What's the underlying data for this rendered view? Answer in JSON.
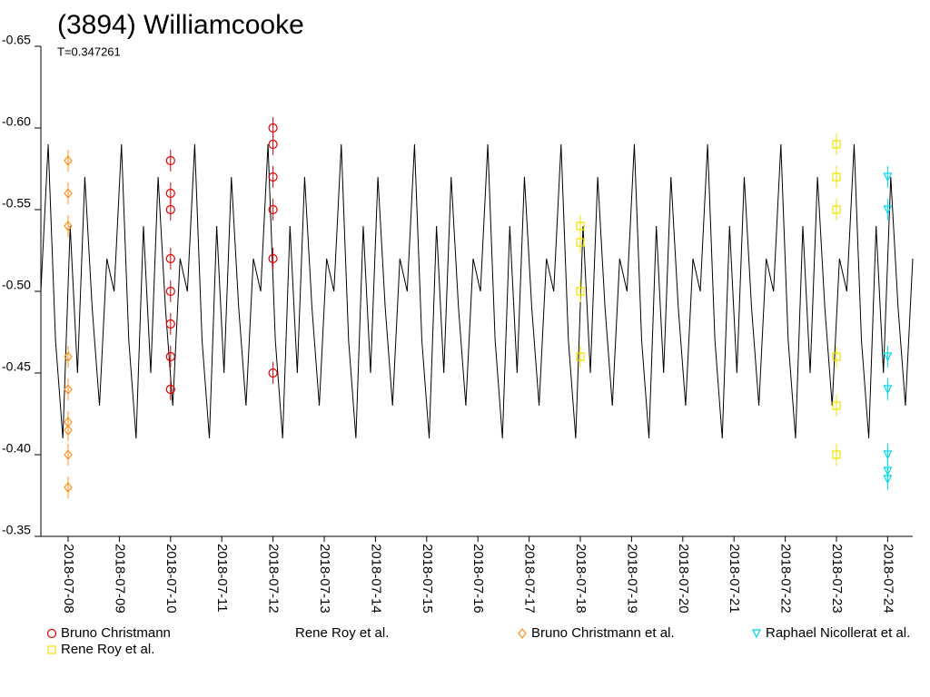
{
  "chart_data": {
    "type": "scatter",
    "title": "(3894) Williamcooke",
    "subtitle": "T=0.347261",
    "xlim": [
      "2018-07-07",
      "2018-07-25"
    ],
    "xticks": [
      "2018-07-08",
      "2018-07-09",
      "2018-07-10",
      "2018-07-11",
      "2018-07-12",
      "2018-07-13",
      "2018-07-14",
      "2018-07-15",
      "2018-07-16",
      "2018-07-17",
      "2018-07-18",
      "2018-07-19",
      "2018-07-20",
      "2018-07-21",
      "2018-07-22",
      "2018-07-23",
      "2018-07-24"
    ],
    "ylim": [
      -0.65,
      -0.35
    ],
    "yticks": [
      -0.65,
      {
        "value": -0.6,
        "label": "-0.60"
      },
      -0.55,
      {
        "value": -0.5,
        "label": "-0.50"
      },
      -0.45,
      {
        "value": -0.4,
        "label": "-0.40"
      },
      -0.35
    ],
    "model_color": "#000000",
    "model_values": [
      -0.5,
      -0.59,
      -0.47,
      -0.41,
      -0.54,
      -0.45,
      -0.57,
      -0.49,
      -0.43,
      -0.52,
      -0.5,
      -0.59,
      -0.47,
      -0.41,
      -0.54,
      -0.45,
      -0.57,
      -0.49,
      -0.43,
      -0.52,
      -0.5,
      -0.59,
      -0.47,
      -0.41,
      -0.54,
      -0.45,
      -0.57,
      -0.49,
      -0.43,
      -0.52,
      -0.5,
      -0.59,
      -0.47,
      -0.41,
      -0.54,
      -0.45,
      -0.57,
      -0.49,
      -0.43,
      -0.52,
      -0.5,
      -0.59,
      -0.47,
      -0.41,
      -0.54,
      -0.45,
      -0.57,
      -0.49,
      -0.43,
      -0.52,
      -0.5,
      -0.59,
      -0.47,
      -0.41,
      -0.54,
      -0.45,
      -0.57,
      -0.49,
      -0.43,
      -0.52,
      -0.5,
      -0.59,
      -0.47,
      -0.41,
      -0.54,
      -0.45,
      -0.57,
      -0.49,
      -0.43,
      -0.52,
      -0.5,
      -0.59,
      -0.47,
      -0.41,
      -0.54,
      -0.45,
      -0.57,
      -0.49,
      -0.43,
      -0.52,
      -0.5,
      -0.59,
      -0.47,
      -0.41,
      -0.54,
      -0.45,
      -0.57,
      -0.49,
      -0.43,
      -0.52,
      -0.5,
      -0.59,
      -0.47,
      -0.41,
      -0.54,
      -0.45,
      -0.57,
      -0.49,
      -0.43,
      -0.52,
      -0.5,
      -0.59,
      -0.47,
      -0.41,
      -0.54,
      -0.45,
      -0.57,
      -0.49,
      -0.43,
      -0.52,
      -0.5,
      -0.59,
      -0.47,
      -0.41,
      -0.54,
      -0.45,
      -0.57,
      -0.49,
      -0.43,
      -0.52
    ],
    "series": [
      {
        "name": "Bruno Christmann",
        "color": "#e00000",
        "marker": "circle",
        "x": [
          "2018-07-10",
          "2018-07-10",
          "2018-07-10",
          "2018-07-10",
          "2018-07-10",
          "2018-07-10",
          "2018-07-10",
          "2018-07-10",
          "2018-07-12",
          "2018-07-12",
          "2018-07-12",
          "2018-07-12",
          "2018-07-12",
          "2018-07-12"
        ],
        "values": [
          -0.44,
          -0.46,
          -0.48,
          -0.52,
          -0.55,
          -0.58,
          -0.56,
          -0.5,
          -0.45,
          -0.52,
          -0.55,
          -0.57,
          -0.59,
          -0.6
        ]
      },
      {
        "name": "Rene Roy et al.",
        "color": "#000000",
        "marker": "none",
        "x": [],
        "values": []
      },
      {
        "name": "Bruno Christmann et al.",
        "color": "#ff9020",
        "marker": "diamond",
        "x": [
          "2018-07-08",
          "2018-07-08",
          "2018-07-08",
          "2018-07-08",
          "2018-07-08",
          "2018-07-08",
          "2018-07-08",
          "2018-07-08",
          "2018-07-08"
        ],
        "values": [
          -0.38,
          -0.4,
          -0.42,
          -0.44,
          -0.46,
          -0.54,
          -0.56,
          -0.58,
          -0.415
        ]
      },
      {
        "name": "Raphael Nicollerat et al.",
        "color": "#00d8e8",
        "marker": "triangle",
        "x": [
          "2018-07-24",
          "2018-07-24",
          "2018-07-24",
          "2018-07-24",
          "2018-07-24",
          "2018-07-24",
          "2018-07-24"
        ],
        "values": [
          -0.385,
          -0.39,
          -0.4,
          -0.44,
          -0.46,
          -0.55,
          -0.57
        ]
      },
      {
        "name": "Rene Roy et al.",
        "color": "#f0e000",
        "marker": "square",
        "x": [
          "2018-07-18",
          "2018-07-18",
          "2018-07-18",
          "2018-07-18",
          "2018-07-23",
          "2018-07-23",
          "2018-07-23",
          "2018-07-23",
          "2018-07-23",
          "2018-07-23"
        ],
        "values": [
          -0.46,
          -0.5,
          -0.53,
          -0.54,
          -0.4,
          -0.43,
          -0.55,
          -0.57,
          -0.59,
          -0.46
        ]
      }
    ]
  }
}
